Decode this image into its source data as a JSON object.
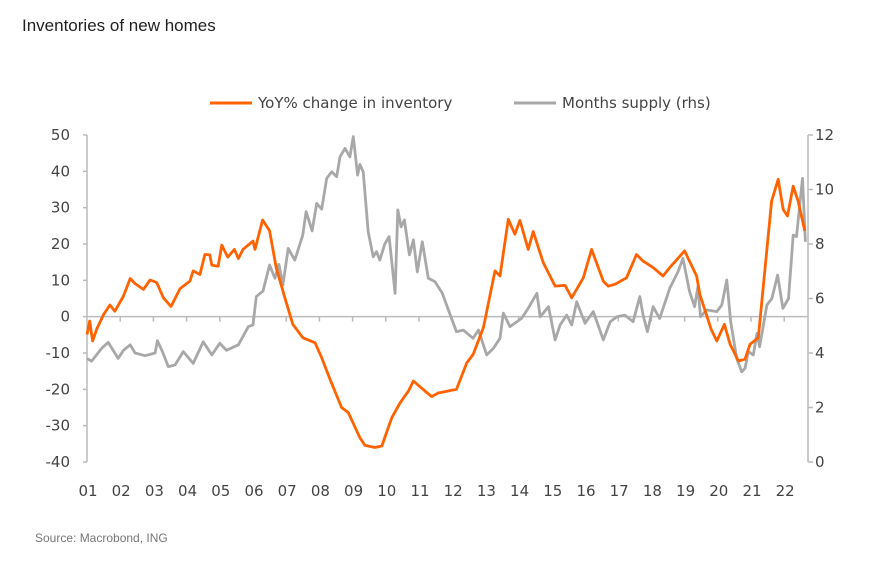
{
  "title": "Inventories of new homes",
  "source": "Source: Macrobond, ING",
  "colors": {
    "orange": "#FF6200",
    "gray": "#A8A8A8",
    "axis": "#BBBBBB"
  },
  "chart_data": {
    "type": "line",
    "title": "Inventories of new homes",
    "legend_position": "top-center",
    "x_tick_labels": [
      "01",
      "02",
      "03",
      "04",
      "05",
      "06",
      "07",
      "08",
      "09",
      "10",
      "11",
      "12",
      "13",
      "14",
      "15",
      "16",
      "17",
      "18",
      "19",
      "20",
      "21",
      "22"
    ],
    "x_years": [
      2001,
      2002,
      2003,
      2004,
      2005,
      2006,
      2007,
      2008,
      2009,
      2010,
      2011,
      2012,
      2013,
      2014,
      2015,
      2016,
      2017,
      2018,
      2019,
      2020,
      2021,
      2022
    ],
    "xlim": [
      2001,
      2022.75
    ],
    "y_left": {
      "ylim": [
        -40,
        50
      ],
      "ticks": [
        50,
        40,
        30,
        20,
        10,
        0,
        -10,
        -20,
        -30,
        -40
      ]
    },
    "y_right": {
      "ylim": [
        0,
        12
      ],
      "ticks": [
        12,
        10,
        8,
        6,
        4,
        2,
        0
      ]
    },
    "series": [
      {
        "name": "YoY% change in inventory",
        "axis": "left",
        "color": "#FF6200",
        "points": [
          [
            2001.0,
            -4.9
          ],
          [
            2001.08,
            -1.2
          ],
          [
            2001.17,
            -6.7
          ],
          [
            2001.29,
            -3.5
          ],
          [
            2001.5,
            0.6
          ],
          [
            2001.69,
            3.2
          ],
          [
            2001.84,
            1.5
          ],
          [
            2002.1,
            5.7
          ],
          [
            2002.3,
            10.5
          ],
          [
            2002.45,
            9.1
          ],
          [
            2002.7,
            7.5
          ],
          [
            2002.9,
            10.1
          ],
          [
            2003.1,
            9.4
          ],
          [
            2003.3,
            5.2
          ],
          [
            2003.53,
            2.8
          ],
          [
            2003.8,
            7.7
          ],
          [
            2004.1,
            9.8
          ],
          [
            2004.2,
            12.6
          ],
          [
            2004.4,
            11.6
          ],
          [
            2004.55,
            17.1
          ],
          [
            2004.7,
            17.0
          ],
          [
            2004.76,
            14.2
          ],
          [
            2004.95,
            13.9
          ],
          [
            2005.06,
            19.7
          ],
          [
            2005.24,
            16.4
          ],
          [
            2005.44,
            18.5
          ],
          [
            2005.56,
            16.0
          ],
          [
            2005.7,
            18.5
          ],
          [
            2006.0,
            20.8
          ],
          [
            2006.06,
            18.5
          ],
          [
            2006.29,
            26.6
          ],
          [
            2006.5,
            23.6
          ],
          [
            2006.7,
            13.5
          ],
          [
            2006.96,
            5.2
          ],
          [
            2007.2,
            -2.1
          ],
          [
            2007.5,
            -5.8
          ],
          [
            2007.87,
            -7.2
          ],
          [
            2008.07,
            -11.3
          ],
          [
            2008.3,
            -16.8
          ],
          [
            2008.67,
            -25.0
          ],
          [
            2008.87,
            -26.4
          ],
          [
            2009.22,
            -33.3
          ],
          [
            2009.37,
            -35.4
          ],
          [
            2009.67,
            -36.0
          ],
          [
            2009.88,
            -35.6
          ],
          [
            2010.18,
            -27.8
          ],
          [
            2010.43,
            -23.7
          ],
          [
            2010.68,
            -20.5
          ],
          [
            2010.83,
            -17.7
          ],
          [
            2011.18,
            -20.5
          ],
          [
            2011.38,
            -22.0
          ],
          [
            2011.58,
            -21.0
          ],
          [
            2011.75,
            -20.7
          ],
          [
            2012.13,
            -20.0
          ],
          [
            2012.44,
            -12.7
          ],
          [
            2012.63,
            -10.4
          ],
          [
            2012.94,
            -3.0
          ],
          [
            2013.29,
            12.6
          ],
          [
            2013.44,
            11.2
          ],
          [
            2013.69,
            26.8
          ],
          [
            2013.89,
            22.7
          ],
          [
            2014.04,
            26.5
          ],
          [
            2014.29,
            18.5
          ],
          [
            2014.44,
            23.4
          ],
          [
            2014.74,
            14.9
          ],
          [
            2015.1,
            8.4
          ],
          [
            2015.4,
            8.6
          ],
          [
            2015.6,
            5.2
          ],
          [
            2015.95,
            10.7
          ],
          [
            2016.2,
            18.5
          ],
          [
            2016.55,
            9.8
          ],
          [
            2016.7,
            8.4
          ],
          [
            2016.9,
            8.9
          ],
          [
            2017.25,
            10.7
          ],
          [
            2017.55,
            17.1
          ],
          [
            2017.75,
            15.3
          ],
          [
            2018.05,
            13.5
          ],
          [
            2018.35,
            11.2
          ],
          [
            2018.55,
            13.5
          ],
          [
            2019.0,
            18.1
          ],
          [
            2019.36,
            11.2
          ],
          [
            2019.46,
            6.1
          ],
          [
            2019.8,
            -3.5
          ],
          [
            2019.97,
            -6.7
          ],
          [
            2020.2,
            -2.1
          ],
          [
            2020.37,
            -7.6
          ],
          [
            2020.62,
            -12.2
          ],
          [
            2020.82,
            -11.7
          ],
          [
            2020.97,
            -7.6
          ],
          [
            2021.22,
            -5.8
          ],
          [
            2021.62,
            31.8
          ],
          [
            2021.82,
            37.8
          ],
          [
            2021.97,
            29.5
          ],
          [
            2022.1,
            27.7
          ],
          [
            2022.27,
            35.9
          ],
          [
            2022.42,
            31.8
          ],
          [
            2022.62,
            23.6
          ]
        ]
      },
      {
        "name": "Months supply (rhs)",
        "axis": "right",
        "color": "#A8A8A8",
        "points": [
          [
            2001.0,
            3.8
          ],
          [
            2001.14,
            3.7
          ],
          [
            2001.44,
            4.17
          ],
          [
            2001.64,
            4.39
          ],
          [
            2001.94,
            3.8
          ],
          [
            2002.1,
            4.1
          ],
          [
            2002.3,
            4.3
          ],
          [
            2002.45,
            4.0
          ],
          [
            2002.75,
            3.9
          ],
          [
            2003.05,
            4.0
          ],
          [
            2003.12,
            4.45
          ],
          [
            2003.27,
            4.05
          ],
          [
            2003.45,
            3.5
          ],
          [
            2003.65,
            3.56
          ],
          [
            2003.9,
            4.05
          ],
          [
            2004.2,
            3.62
          ],
          [
            2004.5,
            4.41
          ],
          [
            2004.76,
            3.93
          ],
          [
            2005.0,
            4.36
          ],
          [
            2005.2,
            4.1
          ],
          [
            2005.56,
            4.3
          ],
          [
            2005.86,
            4.97
          ],
          [
            2006.0,
            5.03
          ],
          [
            2006.1,
            6.07
          ],
          [
            2006.3,
            6.27
          ],
          [
            2006.5,
            7.23
          ],
          [
            2006.66,
            6.74
          ],
          [
            2006.78,
            7.25
          ],
          [
            2006.9,
            6.5
          ],
          [
            2007.06,
            7.84
          ],
          [
            2007.26,
            7.41
          ],
          [
            2007.5,
            8.33
          ],
          [
            2007.6,
            9.19
          ],
          [
            2007.78,
            8.48
          ],
          [
            2007.92,
            9.49
          ],
          [
            2008.07,
            9.28
          ],
          [
            2008.22,
            10.41
          ],
          [
            2008.37,
            10.65
          ],
          [
            2008.52,
            10.47
          ],
          [
            2008.62,
            11.2
          ],
          [
            2008.77,
            11.51
          ],
          [
            2008.92,
            11.2
          ],
          [
            2009.02,
            11.94
          ],
          [
            2009.15,
            10.53
          ],
          [
            2009.22,
            10.92
          ],
          [
            2009.32,
            10.65
          ],
          [
            2009.47,
            8.45
          ],
          [
            2009.62,
            7.53
          ],
          [
            2009.72,
            7.72
          ],
          [
            2009.82,
            7.41
          ],
          [
            2009.97,
            8.0
          ],
          [
            2010.1,
            8.27
          ],
          [
            2010.28,
            6.19
          ],
          [
            2010.36,
            9.25
          ],
          [
            2010.46,
            8.63
          ],
          [
            2010.56,
            8.88
          ],
          [
            2010.71,
            7.6
          ],
          [
            2010.83,
            8.15
          ],
          [
            2010.95,
            6.98
          ],
          [
            2011.1,
            8.08
          ],
          [
            2011.28,
            6.74
          ],
          [
            2011.48,
            6.62
          ],
          [
            2011.7,
            6.2
          ],
          [
            2011.98,
            5.27
          ],
          [
            2012.13,
            4.78
          ],
          [
            2012.33,
            4.84
          ],
          [
            2012.63,
            4.54
          ],
          [
            2012.79,
            4.84
          ],
          [
            2013.04,
            3.93
          ],
          [
            2013.24,
            4.17
          ],
          [
            2013.44,
            4.54
          ],
          [
            2013.54,
            5.46
          ],
          [
            2013.74,
            4.97
          ],
          [
            2014.09,
            5.27
          ],
          [
            2014.29,
            5.64
          ],
          [
            2014.55,
            6.19
          ],
          [
            2014.65,
            5.33
          ],
          [
            2014.9,
            5.7
          ],
          [
            2015.1,
            4.48
          ],
          [
            2015.25,
            5.03
          ],
          [
            2015.45,
            5.39
          ],
          [
            2015.6,
            5.03
          ],
          [
            2015.75,
            5.88
          ],
          [
            2016.0,
            5.09
          ],
          [
            2016.25,
            5.52
          ],
          [
            2016.55,
            4.48
          ],
          [
            2016.76,
            5.15
          ],
          [
            2016.96,
            5.33
          ],
          [
            2017.2,
            5.39
          ],
          [
            2017.45,
            5.15
          ],
          [
            2017.65,
            6.07
          ],
          [
            2017.75,
            5.39
          ],
          [
            2017.88,
            4.78
          ],
          [
            2018.05,
            5.7
          ],
          [
            2018.25,
            5.27
          ],
          [
            2018.55,
            6.37
          ],
          [
            2018.8,
            6.98
          ],
          [
            2018.95,
            7.47
          ],
          [
            2019.15,
            6.25
          ],
          [
            2019.3,
            5.7
          ],
          [
            2019.4,
            6.43
          ],
          [
            2019.48,
            5.33
          ],
          [
            2019.66,
            5.58
          ],
          [
            2019.97,
            5.52
          ],
          [
            2020.12,
            5.76
          ],
          [
            2020.27,
            6.68
          ],
          [
            2020.39,
            5.15
          ],
          [
            2020.57,
            3.8
          ],
          [
            2020.72,
            3.31
          ],
          [
            2020.82,
            3.44
          ],
          [
            2020.92,
            4.05
          ],
          [
            2021.07,
            3.93
          ],
          [
            2021.18,
            4.72
          ],
          [
            2021.26,
            4.23
          ],
          [
            2021.48,
            5.76
          ],
          [
            2021.63,
            6.0
          ],
          [
            2021.8,
            6.86
          ],
          [
            2021.96,
            5.64
          ],
          [
            2022.13,
            6.0
          ],
          [
            2022.27,
            8.33
          ],
          [
            2022.37,
            8.27
          ],
          [
            2022.55,
            10.41
          ],
          [
            2022.64,
            8.08
          ]
        ]
      }
    ]
  }
}
